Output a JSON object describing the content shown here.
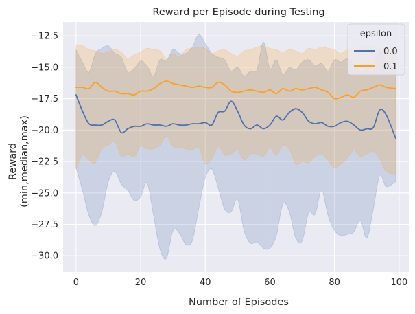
{
  "chart_data": {
    "type": "line",
    "title": "Reward per Episode during Testing",
    "xlabel": "Number of Episodes",
    "ylabel": [
      "Reward",
      "(min,median,max)"
    ],
    "xlim": [
      -4,
      103
    ],
    "ylim": [
      -31.3,
      -11.4
    ],
    "xticks": [
      0,
      20,
      40,
      60,
      80,
      100
    ],
    "xtick_labels": [
      "0",
      "20",
      "40",
      "60",
      "80",
      "100"
    ],
    "yticks": [
      -30.0,
      -27.5,
      -25.0,
      -22.5,
      -20.0,
      -17.5,
      -15.0,
      -12.5
    ],
    "ytick_labels": [
      "−30.0",
      "−27.5",
      "−25.0",
      "−22.5",
      "−20.0",
      "−17.5",
      "−15.0",
      "−12.5"
    ],
    "grid": true,
    "background": "#eaeaf2",
    "legend": {
      "title": "epsilon",
      "placement": "top-right"
    },
    "series": [
      {
        "name": "0.0",
        "color": "#4c72b0",
        "x": [
          0,
          2,
          4,
          6,
          8,
          10,
          12,
          14,
          16,
          18,
          20,
          22,
          24,
          26,
          28,
          30,
          32,
          34,
          36,
          38,
          40,
          42,
          44,
          46,
          48,
          50,
          52,
          54,
          56,
          58,
          60,
          62,
          64,
          66,
          68,
          70,
          72,
          74,
          76,
          78,
          80,
          82,
          84,
          86,
          88,
          90,
          92,
          94,
          96,
          99
        ],
        "median": [
          -17.2,
          -18.5,
          -19.5,
          -19.6,
          -19.6,
          -19.3,
          -19.2,
          -20.2,
          -19.9,
          -19.7,
          -19.7,
          -19.5,
          -19.6,
          -19.6,
          -19.7,
          -19.5,
          -19.6,
          -19.6,
          -19.5,
          -19.5,
          -19.4,
          -19.6,
          -18.6,
          -18.5,
          -17.7,
          -18.5,
          -19.6,
          -19.9,
          -19.6,
          -19.9,
          -19.6,
          -18.9,
          -19.2,
          -18.6,
          -18.3,
          -18.6,
          -19.3,
          -19.5,
          -19.4,
          -19.7,
          -19.7,
          -19.4,
          -19.3,
          -19.6,
          -20.0,
          -19.9,
          -19.8,
          -18.4,
          -18.8,
          -20.7
        ],
        "min": [
          -23.0,
          -24.8,
          -26.8,
          -27.6,
          -26.5,
          -24.1,
          -23.3,
          -24.3,
          -24.8,
          -25.6,
          -25.3,
          -24.2,
          -26.8,
          -29.5,
          -30.2,
          -28.0,
          -28.2,
          -29.1,
          -28.8,
          -26.2,
          -23.8,
          -23.1,
          -24.6,
          -26.3,
          -26.5,
          -25.5,
          -28.0,
          -29.0,
          -28.9,
          -29.4,
          -29.4,
          -28.4,
          -25.9,
          -26.5,
          -28.6,
          -28.8,
          -26.6,
          -26.7,
          -24.8,
          -26.8,
          -28.0,
          -28.4,
          -28.3,
          -28.1,
          -27.2,
          -28.6,
          -26.3,
          -23.6,
          -24.5,
          -24.1
        ],
        "max": [
          -13.6,
          -14.6,
          -15.4,
          -13.9,
          -13.5,
          -13.3,
          -13.9,
          -14.2,
          -15.4,
          -15.1,
          -14.5,
          -14.9,
          -15.7,
          -14.4,
          -14.5,
          -13.6,
          -13.9,
          -13.9,
          -13.4,
          -12.4,
          -13.1,
          -13.9,
          -14.2,
          -14.4,
          -15.3,
          -15.0,
          -15.7,
          -15.3,
          -15.2,
          -13.0,
          -15.1,
          -14.4,
          -15.6,
          -15.0,
          -15.2,
          -14.6,
          -14.4,
          -14.9,
          -14.7,
          -15.3,
          -14.4,
          -14.6,
          -14.3,
          -14.8,
          -15.4,
          -15.1,
          -15.0,
          -13.7,
          -14.5,
          -15.2
        ]
      },
      {
        "name": "0.1",
        "color": "#ff9f1c",
        "x": [
          0,
          2,
          4,
          6,
          8,
          10,
          12,
          14,
          16,
          18,
          20,
          22,
          24,
          26,
          28,
          30,
          32,
          34,
          36,
          38,
          40,
          42,
          44,
          46,
          48,
          50,
          52,
          54,
          56,
          58,
          60,
          62,
          64,
          66,
          68,
          70,
          72,
          74,
          76,
          78,
          80,
          82,
          84,
          86,
          88,
          90,
          92,
          94,
          96,
          99
        ],
        "median": [
          -16.6,
          -16.6,
          -16.7,
          -16.2,
          -16.6,
          -16.9,
          -16.9,
          -17.1,
          -17.1,
          -17.2,
          -16.9,
          -16.9,
          -16.7,
          -16.3,
          -16.1,
          -16.3,
          -16.4,
          -16.5,
          -16.6,
          -16.5,
          -16.6,
          -16.6,
          -16.2,
          -16.4,
          -16.9,
          -17.0,
          -16.9,
          -16.8,
          -16.9,
          -17.0,
          -16.8,
          -17.1,
          -16.7,
          -16.9,
          -16.7,
          -16.8,
          -16.7,
          -16.6,
          -16.8,
          -17.0,
          -17.5,
          -17.4,
          -17.2,
          -17.4,
          -16.9,
          -16.8,
          -16.6,
          -16.4,
          -16.6,
          -16.7
        ],
        "min": [
          -23.1,
          -22.0,
          -22.4,
          -22.6,
          -21.5,
          -21.2,
          -20.9,
          -22.1,
          -21.9,
          -22.1,
          -21.3,
          -21.5,
          -21.5,
          -21.2,
          -20.5,
          -21.3,
          -21.4,
          -21.5,
          -21.6,
          -21.4,
          -22.7,
          -22.3,
          -21.3,
          -22.0,
          -21.9,
          -21.6,
          -22.4,
          -21.9,
          -21.9,
          -22.1,
          -21.4,
          -22.0,
          -21.2,
          -21.5,
          -22.7,
          -22.5,
          -22.6,
          -22.1,
          -21.9,
          -22.4,
          -23.0,
          -22.7,
          -22.2,
          -21.6,
          -22.1,
          -21.9,
          -21.7,
          -22.3,
          -23.3,
          -23.5
        ],
        "max": [
          -13.2,
          -13.3,
          -13.6,
          -13.7,
          -13.9,
          -13.8,
          -13.6,
          -13.8,
          -14.3,
          -14.0,
          -13.8,
          -13.5,
          -13.6,
          -13.7,
          -14.3,
          -13.9,
          -14.2,
          -13.6,
          -13.5,
          -13.4,
          -13.5,
          -13.9,
          -13.7,
          -13.6,
          -13.9,
          -14.1,
          -13.7,
          -13.6,
          -13.4,
          -13.3,
          -13.5,
          -13.6,
          -13.8,
          -13.6,
          -13.7,
          -13.9,
          -13.5,
          -13.6,
          -13.4,
          -13.5,
          -13.6,
          -13.9,
          -13.6,
          -13.6,
          -13.5,
          -13.4,
          -13.3,
          -13.5,
          -13.4,
          -13.6
        ]
      }
    ]
  }
}
